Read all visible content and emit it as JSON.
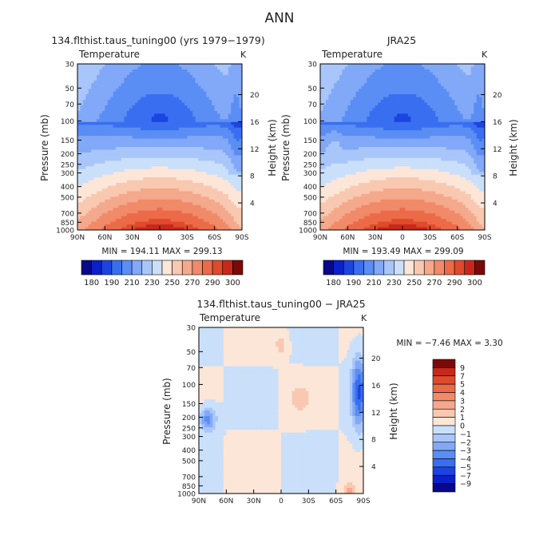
{
  "title": "ANN",
  "colors": {
    "levels_abs": [
      "#08088a",
      "#0a20c8",
      "#1c44e0",
      "#3a6ef0",
      "#5a8ef4",
      "#82a8f8",
      "#a8c6fa",
      "#cadff9",
      "#fce6d8",
      "#f8c8b0",
      "#f4a88c",
      "#f08a68",
      "#ec6a48",
      "#e04a2c",
      "#c8281a",
      "#7a0a0a"
    ],
    "levels_diff": [
      "#08088a",
      "#0a20c8",
      "#1c44e0",
      "#3a6ef0",
      "#5a8ef4",
      "#82a8f8",
      "#a8c6fa",
      "#cadff9",
      "#fce6d8",
      "#f8c8b0",
      "#f4a88c",
      "#f08a68",
      "#ec6a48",
      "#e04a2c",
      "#c8281a",
      "#7a0a0a"
    ]
  },
  "chart_data": [
    {
      "type": "heatmap",
      "title": "134.flthist.taus_tuning00 (yrs 1979−1979)",
      "subtitle_left": "Temperature",
      "subtitle_right": "K",
      "xlabel": "",
      "ylabel": "Pressure (mb)",
      "ylabel_right": "Height (km)",
      "x_ticks": [
        "90N",
        "60N",
        "30N",
        "0",
        "30S",
        "60S",
        "90S"
      ],
      "y_ticks": [
        "30",
        "50",
        "70",
        "100",
        "150",
        "200",
        "250",
        "300",
        "400",
        "500",
        "700",
        "850",
        "1000"
      ],
      "y_ticks_right": [
        "20",
        "16",
        "12",
        "8",
        "4"
      ],
      "stats": "MIN = 194.11   MAX = 299.13",
      "colorbar_labels": [
        "180",
        "190",
        "210",
        "230",
        "250",
        "270",
        "290",
        "300"
      ],
      "field": {
        "description_levels": [
          30,
          50,
          70,
          100,
          150,
          200,
          250,
          300,
          400,
          500,
          700,
          850,
          1000
        ],
        "cold_core": {
          "lat": 0,
          "p": 90,
          "value": 194.11
        },
        "surface_max": {
          "lat": 0,
          "p": 1000,
          "value": 299.13
        }
      }
    },
    {
      "type": "heatmap",
      "title": "JRA25",
      "subtitle_left": "Temperature",
      "subtitle_right": "K",
      "ylabel": "Pressure (mb)",
      "ylabel_right": "Height (km)",
      "x_ticks": [
        "90N",
        "60N",
        "30N",
        "0",
        "30S",
        "60S",
        "90S"
      ],
      "y_ticks": [
        "30",
        "50",
        "70",
        "100",
        "150",
        "200",
        "250",
        "300",
        "400",
        "500",
        "700",
        "850",
        "1000"
      ],
      "y_ticks_right": [
        "20",
        "16",
        "12",
        "8",
        "4"
      ],
      "stats": "MIN = 193.49   MAX = 299.09",
      "colorbar_labels": [
        "180",
        "190",
        "210",
        "230",
        "250",
        "270",
        "290",
        "300"
      ]
    },
    {
      "type": "heatmap",
      "title": "134.flthist.taus_tuning00 − JRA25",
      "subtitle_left": "Temperature",
      "subtitle_right": "K",
      "ylabel": "Pressure (mb)",
      "ylabel_right": "Height (km)",
      "x_ticks": [
        "90N",
        "60N",
        "30N",
        "0",
        "30S",
        "60S",
        "90S"
      ],
      "y_ticks": [
        "30",
        "50",
        "70",
        "100",
        "150",
        "200",
        "250",
        "300",
        "400",
        "500",
        "700",
        "850",
        "1000"
      ],
      "y_ticks_right": [
        "20",
        "16",
        "12",
        "8",
        "4"
      ],
      "stats": "MIN =   −7.46   MAX =    3.30",
      "colorbar_labels": [
        "9",
        "7",
        "5",
        "4",
        "3",
        "2",
        "1",
        "0",
        "−1",
        "−2",
        "−3",
        "−4",
        "−5",
        "−7",
        "−9"
      ]
    }
  ]
}
